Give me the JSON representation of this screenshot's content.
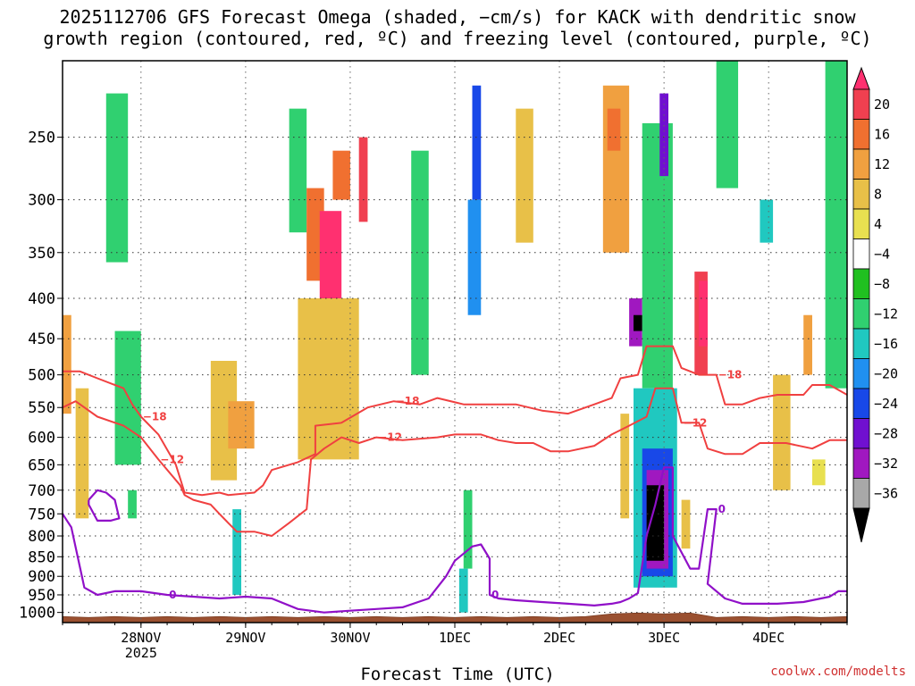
{
  "title": {
    "line1": "2025112706 GFS Forecast Omega (shaded, −cm/s) for KACK with dendritic snow",
    "line2": "growth region (contoured, red, ºC) and freezing level (contoured, purple, ºC)"
  },
  "credit": "coolwx.com/modelts",
  "chart_data": {
    "type": "heatmap",
    "xlabel": "Forecast Time (UTC)",
    "ylabel": "",
    "x_range_hours": [
      0,
      180
    ],
    "x_ticks": [
      {
        "label": "28NOV",
        "sublabel": "2025",
        "hour": 18
      },
      {
        "label": "29NOV",
        "sublabel": "",
        "hour": 42
      },
      {
        "label": "30NOV",
        "sublabel": "",
        "hour": 66
      },
      {
        "label": "1DEC",
        "sublabel": "",
        "hour": 90
      },
      {
        "label": "2DEC",
        "sublabel": "",
        "hour": 114
      },
      {
        "label": "3DEC",
        "sublabel": "",
        "hour": 138
      },
      {
        "label": "4DEC",
        "sublabel": "",
        "hour": 162
      }
    ],
    "y_range_hpa": [
      200,
      1030
    ],
    "y_ticks": [
      250,
      300,
      350,
      400,
      450,
      500,
      550,
      600,
      650,
      700,
      750,
      800,
      850,
      900,
      950,
      1000
    ],
    "y_scale": "log-pressure",
    "grid": true,
    "colorbar": {
      "ticks": [
        "20",
        "16",
        "12",
        "8",
        "4",
        "−4",
        "−8",
        "−12",
        "−16",
        "−20",
        "−24",
        "−28",
        "−32",
        "−36"
      ],
      "colors": [
        "#ff3070",
        "#f04050",
        "#f07030",
        "#f0a040",
        "#e8c048",
        "#e8e050",
        "#ffffff",
        "#20c020",
        "#30d070",
        "#20c8c0",
        "#2090f0",
        "#1848e8",
        "#7010d0",
        "#a018c0",
        "#a8a8a8",
        "#000000"
      ]
    },
    "omega_cells": [
      {
        "t": [
          0,
          2
        ],
        "p": [
          420,
          560
        ],
        "v": 10
      },
      {
        "t": [
          3,
          6
        ],
        "p": [
          520,
          760
        ],
        "v": 6
      },
      {
        "t": [
          10,
          15
        ],
        "p": [
          220,
          360
        ],
        "v": -8
      },
      {
        "t": [
          12,
          18
        ],
        "p": [
          440,
          650
        ],
        "v": -10
      },
      {
        "t": [
          15,
          17
        ],
        "p": [
          700,
          760
        ],
        "v": -9
      },
      {
        "t": [
          34,
          40
        ],
        "p": [
          480,
          680
        ],
        "v": 6
      },
      {
        "t": [
          38,
          44
        ],
        "p": [
          540,
          620
        ],
        "v": 10
      },
      {
        "t": [
          39,
          41
        ],
        "p": [
          740,
          950
        ],
        "v": -14
      },
      {
        "t": [
          52,
          56
        ],
        "p": [
          230,
          330
        ],
        "v": -8
      },
      {
        "t": [
          56,
          60
        ],
        "p": [
          290,
          380
        ],
        "v": 14
      },
      {
        "t": [
          59,
          64
        ],
        "p": [
          310,
          410
        ],
        "v": 20
      },
      {
        "t": [
          62,
          66
        ],
        "p": [
          260,
          300
        ],
        "v": 12
      },
      {
        "t": [
          54,
          68
        ],
        "p": [
          400,
          640
        ],
        "v": 7
      },
      {
        "t": [
          68,
          70
        ],
        "p": [
          250,
          320
        ],
        "v": 18
      },
      {
        "t": [
          80,
          84
        ],
        "p": [
          260,
          500
        ],
        "v": -9
      },
      {
        "t": [
          94,
          96
        ],
        "p": [
          215,
          300
        ],
        "v": -22
      },
      {
        "t": [
          93,
          96
        ],
        "p": [
          300,
          420
        ],
        "v": -16
      },
      {
        "t": [
          92,
          94
        ],
        "p": [
          700,
          880
        ],
        "v": -10
      },
      {
        "t": [
          91,
          93
        ],
        "p": [
          880,
          1000
        ],
        "v": -12
      },
      {
        "t": [
          104,
          108
        ],
        "p": [
          230,
          340
        ],
        "v": 6
      },
      {
        "t": [
          124,
          130
        ],
        "p": [
          215,
          350
        ],
        "v": 9
      },
      {
        "t": [
          125,
          128
        ],
        "p": [
          230,
          260
        ],
        "v": 13
      },
      {
        "t": [
          128,
          130
        ],
        "p": [
          560,
          760
        ],
        "v": 7
      },
      {
        "t": [
          130,
          133
        ],
        "p": [
          400,
          460
        ],
        "v": -30
      },
      {
        "t": [
          131,
          133
        ],
        "p": [
          420,
          440
        ],
        "v": -36
      },
      {
        "t": [
          133,
          140
        ],
        "p": [
          240,
          520
        ],
        "v": -10
      },
      {
        "t": [
          131,
          141
        ],
        "p": [
          520,
          930
        ],
        "v": -14
      },
      {
        "t": [
          133,
          140
        ],
        "p": [
          620,
          900
        ],
        "v": -22
      },
      {
        "t": [
          134,
          139
        ],
        "p": [
          660,
          880
        ],
        "v": -28
      },
      {
        "t": [
          134,
          138
        ],
        "p": [
          690,
          860
        ],
        "v": -36
      },
      {
        "t": [
          137,
          139
        ],
        "p": [
          220,
          280
        ],
        "v": -26
      },
      {
        "t": [
          145,
          148
        ],
        "p": [
          370,
          500
        ],
        "v": 18
      },
      {
        "t": [
          146,
          148
        ],
        "p": [
          380,
          460
        ],
        "v": 20
      },
      {
        "t": [
          142,
          144
        ],
        "p": [
          720,
          830
        ],
        "v": 7
      },
      {
        "t": [
          150,
          155
        ],
        "p": [
          200,
          290
        ],
        "v": -8
      },
      {
        "t": [
          160,
          163
        ],
        "p": [
          300,
          340
        ],
        "v": -14
      },
      {
        "t": [
          163,
          167
        ],
        "p": [
          500,
          700
        ],
        "v": 6
      },
      {
        "t": [
          170,
          172
        ],
        "p": [
          420,
          500
        ],
        "v": 10
      },
      {
        "t": [
          172,
          175
        ],
        "p": [
          640,
          690
        ],
        "v": 5
      },
      {
        "t": [
          175,
          180
        ],
        "p": [
          200,
          520
        ],
        "v": -9
      }
    ],
    "dgz_contours": [
      {
        "label": "−12",
        "points": [
          [
            0,
            550
          ],
          [
            3,
            540
          ],
          [
            8,
            565
          ],
          [
            14,
            580
          ],
          [
            18,
            600
          ],
          [
            22,
            640
          ],
          [
            27,
            690
          ],
          [
            28,
            710
          ],
          [
            30,
            720
          ],
          [
            34,
            730
          ],
          [
            36,
            750
          ],
          [
            38,
            770
          ],
          [
            40,
            790
          ],
          [
            44,
            790
          ],
          [
            48,
            800
          ],
          [
            52,
            770
          ],
          [
            56,
            740
          ],
          [
            57,
            640
          ],
          [
            60,
            620
          ],
          [
            64,
            600
          ],
          [
            68,
            610
          ],
          [
            72,
            600
          ],
          [
            78,
            605
          ],
          [
            86,
            600
          ],
          [
            90,
            595
          ],
          [
            96,
            595
          ],
          [
            100,
            605
          ],
          [
            104,
            610
          ],
          [
            108,
            610
          ],
          [
            112,
            625
          ],
          [
            116,
            625
          ],
          [
            122,
            615
          ],
          [
            126,
            595
          ],
          [
            130,
            580
          ],
          [
            134,
            565
          ],
          [
            136,
            520
          ],
          [
            140,
            520
          ],
          [
            142,
            575
          ],
          [
            146,
            575
          ],
          [
            148,
            620
          ],
          [
            152,
            630
          ],
          [
            156,
            630
          ],
          [
            160,
            610
          ],
          [
            166,
            610
          ],
          [
            172,
            620
          ],
          [
            176,
            605
          ],
          [
            180,
            605
          ]
        ]
      },
      {
        "label": "−18",
        "points": [
          [
            0,
            495
          ],
          [
            4,
            495
          ],
          [
            8,
            505
          ],
          [
            14,
            520
          ],
          [
            16,
            545
          ],
          [
            18,
            565
          ],
          [
            22,
            595
          ],
          [
            26,
            650
          ],
          [
            28,
            705
          ],
          [
            32,
            710
          ],
          [
            36,
            705
          ],
          [
            38,
            710
          ],
          [
            44,
            705
          ],
          [
            46,
            690
          ],
          [
            48,
            660
          ],
          [
            54,
            645
          ],
          [
            58,
            630
          ],
          [
            58,
            580
          ],
          [
            64,
            575
          ],
          [
            70,
            550
          ],
          [
            76,
            540
          ],
          [
            82,
            545
          ],
          [
            86,
            535
          ],
          [
            92,
            545
          ],
          [
            98,
            545
          ],
          [
            104,
            545
          ],
          [
            110,
            555
          ],
          [
            116,
            560
          ],
          [
            122,
            545
          ],
          [
            126,
            535
          ],
          [
            128,
            505
          ],
          [
            132,
            500
          ],
          [
            134,
            460
          ],
          [
            140,
            460
          ],
          [
            142,
            490
          ],
          [
            146,
            500
          ],
          [
            150,
            500
          ],
          [
            152,
            545
          ],
          [
            156,
            545
          ],
          [
            160,
            535
          ],
          [
            164,
            530
          ],
          [
            170,
            530
          ],
          [
            172,
            515
          ],
          [
            176,
            515
          ],
          [
            180,
            530
          ]
        ]
      }
    ],
    "freezing_contours": [
      {
        "label": "0",
        "points": [
          [
            0,
            750
          ],
          [
            2,
            780
          ],
          [
            5,
            930
          ],
          [
            8,
            950
          ],
          [
            12,
            940
          ],
          [
            18,
            940
          ],
          [
            24,
            950
          ],
          [
            30,
            955
          ],
          [
            36,
            960
          ],
          [
            42,
            955
          ],
          [
            48,
            960
          ],
          [
            54,
            990
          ],
          [
            60,
            1000
          ],
          [
            66,
            995
          ],
          [
            72,
            990
          ],
          [
            78,
            985
          ],
          [
            84,
            960
          ],
          [
            88,
            900
          ],
          [
            90,
            860
          ],
          [
            94,
            825
          ],
          [
            96,
            820
          ],
          [
            98,
            855
          ],
          [
            98,
            950
          ],
          [
            100,
            960
          ],
          [
            104,
            965
          ],
          [
            110,
            970
          ],
          [
            116,
            975
          ],
          [
            122,
            980
          ],
          [
            126,
            975
          ],
          [
            128,
            970
          ],
          [
            130,
            960
          ],
          [
            132,
            945
          ],
          [
            134,
            800
          ],
          [
            136,
            730
          ],
          [
            138,
            655
          ],
          [
            140,
            655
          ],
          [
            140,
            800
          ],
          [
            144,
            880
          ],
          [
            146,
            880
          ],
          [
            148,
            740
          ],
          [
            150,
            740
          ],
          [
            148,
            920
          ],
          [
            152,
            960
          ],
          [
            156,
            975
          ],
          [
            160,
            975
          ],
          [
            164,
            975
          ],
          [
            170,
            970
          ],
          [
            176,
            955
          ],
          [
            178,
            940
          ],
          [
            180,
            940
          ]
        ]
      },
      {
        "label": "",
        "points": [
          [
            6,
            720
          ],
          [
            8,
            700
          ],
          [
            10,
            705
          ],
          [
            12,
            720
          ],
          [
            13,
            760
          ],
          [
            11,
            765
          ],
          [
            8,
            765
          ],
          [
            6,
            730
          ],
          [
            6,
            720
          ]
        ]
      }
    ],
    "surface": "terrain shaded brown near 1000 hPa"
  }
}
